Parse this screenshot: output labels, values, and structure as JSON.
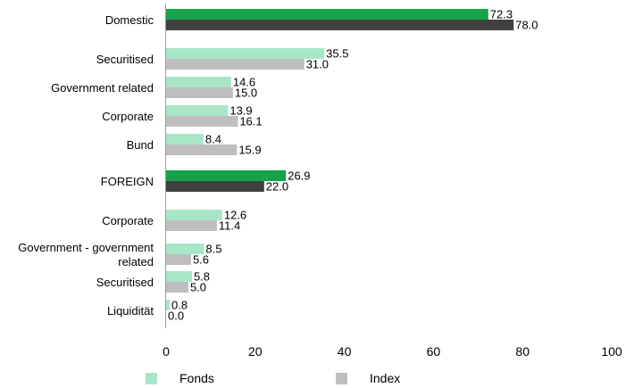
{
  "chart_data": {
    "type": "bar",
    "orientation": "horizontal",
    "title": "",
    "xlabel": "",
    "ylabel": "",
    "xlim": [
      0,
      100
    ],
    "x_ticks": [
      "0",
      "20",
      "40",
      "60",
      "80",
      "100"
    ],
    "grid": false,
    "legend_position": "bottom",
    "series": [
      {
        "name": "Fonds",
        "color": "#a8e6c8"
      },
      {
        "name": "Index",
        "color": "#bebebe"
      }
    ],
    "rows": [
      {
        "label": "Domestic",
        "fonds": 72.3,
        "index": 78.0,
        "fonds_label": "72.3",
        "index_label": "78.0",
        "group_total": true,
        "fonds_color": "#16a34a",
        "index_color": "#404040"
      },
      {
        "label": "Securitised",
        "fonds": 35.5,
        "index": 31.0,
        "fonds_label": "35.5",
        "index_label": "31.0"
      },
      {
        "label": "Government related",
        "fonds": 14.6,
        "index": 15.0,
        "fonds_label": "14.6",
        "index_label": "15.0"
      },
      {
        "label": "Corporate",
        "fonds": 13.9,
        "index": 16.1,
        "fonds_label": "13.9",
        "index_label": "16.1"
      },
      {
        "label": "Bund",
        "fonds": 8.4,
        "index": 15.9,
        "fonds_label": "8.4",
        "index_label": "15.9"
      },
      {
        "label": "FOREIGN",
        "fonds": 26.9,
        "index": 22.0,
        "fonds_label": "26.9",
        "index_label": "22.0",
        "group_total": true,
        "fonds_color": "#16a34a",
        "index_color": "#404040"
      },
      {
        "label": "Corporate",
        "fonds": 12.6,
        "index": 11.4,
        "fonds_label": "12.6",
        "index_label": "11.4"
      },
      {
        "label": "Government - government related",
        "fonds": 8.5,
        "index": 5.6,
        "fonds_label": "8.5",
        "index_label": "5.6"
      },
      {
        "label": "Securitised",
        "fonds": 5.8,
        "index": 5.0,
        "fonds_label": "5.8",
        "index_label": "5.0"
      },
      {
        "label": "Liquidität",
        "fonds": 0.8,
        "index": 0.0,
        "fonds_label": "0.8",
        "index_label": "0.0"
      }
    ]
  },
  "legend": {
    "fonds_label": "Fonds",
    "index_label": "Index"
  }
}
